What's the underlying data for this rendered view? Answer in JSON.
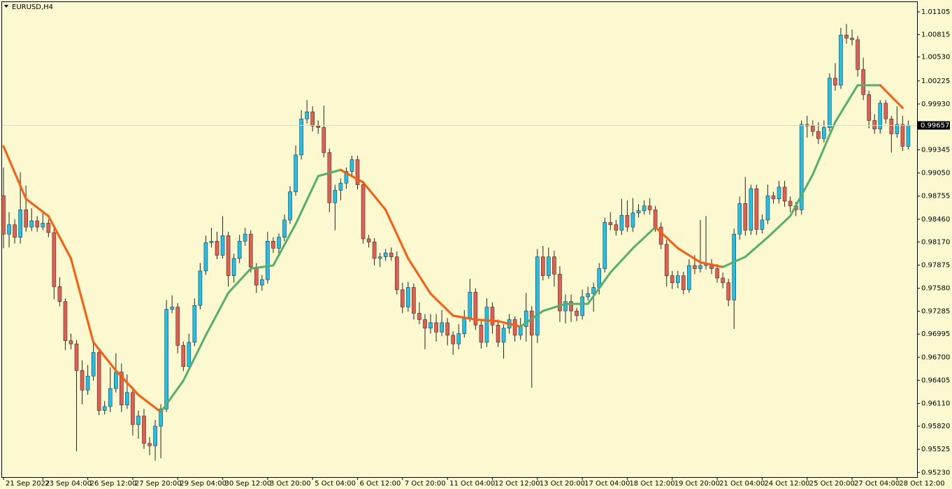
{
  "chart_data": {
    "type": "candlestick",
    "title": "EURUSD,H4",
    "up_color": "#19c3ef",
    "down_color": "#e65c4f",
    "categories": [
      "21 Sep 2022",
      null,
      null,
      null,
      null,
      null,
      null,
      "23 Sep 04:00",
      null,
      null,
      null,
      null,
      null,
      null,
      null,
      "26 Sep 12:00",
      null,
      null,
      null,
      null,
      null,
      null,
      null,
      "27 Sep 20:00",
      null,
      null,
      null,
      null,
      null,
      null,
      null,
      "29 Sep 04:00",
      null,
      null,
      null,
      null,
      null,
      null,
      null,
      "30 Sep 12:00",
      null,
      null,
      null,
      null,
      null,
      null,
      null,
      "3 Oct 20:00",
      null,
      null,
      null,
      null,
      null,
      null,
      null,
      "5 Oct 04:00",
      null,
      null,
      null,
      null,
      null,
      null,
      null,
      "6 Oct 12:00",
      null,
      null,
      null,
      null,
      null,
      null,
      null,
      "7 Oct 20:00",
      null,
      null,
      null,
      null,
      null,
      null,
      null,
      "11 Oct 04:00",
      null,
      null,
      null,
      null,
      null,
      null,
      null,
      "12 Oct 12:00",
      null,
      null,
      null,
      null,
      null,
      null,
      null,
      "13 Oct 20:00",
      null,
      null,
      null,
      null,
      null,
      null,
      null,
      "17 Oct 04:00",
      null,
      null,
      null,
      null,
      null,
      null,
      null,
      "18 Oct 12:00",
      null,
      null,
      null,
      null,
      null,
      null,
      null,
      "19 Oct 20:00",
      null,
      null,
      null,
      null,
      null,
      null,
      null,
      "21 Oct 04:00",
      null,
      null,
      null,
      null,
      null,
      null,
      null,
      "24 Oct 12:00",
      null,
      null,
      null,
      null,
      null,
      null,
      null,
      "25 Oct 20:00",
      null,
      null,
      null,
      null,
      null,
      null,
      null,
      "27 Oct 04:00",
      null,
      null,
      null,
      null,
      null,
      null,
      null,
      "28 Oct 12:00",
      null,
      null
    ],
    "open": [
      0.9876,
      0.9827,
      0.9839,
      0.9823,
      0.9858,
      0.9836,
      0.9844,
      0.9836,
      0.9841,
      0.9829,
      0.976,
      0.9741,
      0.9691,
      0.9687,
      0.9653,
      0.9628,
      0.9646,
      0.9676,
      0.9602,
      0.9607,
      0.963,
      0.9651,
      0.9609,
      0.9625,
      0.9584,
      0.9595,
      0.956,
      0.9557,
      0.9582,
      0.9604,
      0.9731,
      0.9734,
      0.9685,
      0.9658,
      0.9689,
      0.9736,
      0.978,
      0.9816,
      0.9818,
      0.98,
      0.9825,
      0.9774,
      0.9796,
      0.9818,
      0.9827,
      0.9785,
      0.9762,
      0.9769,
      0.9818,
      0.9809,
      0.9823,
      0.9845,
      0.9881,
      0.9928,
      0.9974,
      0.9983,
      0.9965,
      0.9963,
      0.9931,
      0.9867,
      0.9883,
      0.9892,
      0.9907,
      0.9922,
      0.989,
      0.9821,
      0.9817,
      0.9796,
      0.9798,
      0.9803,
      0.9798,
      0.9756,
      0.9734,
      0.9759,
      0.9726,
      0.9718,
      0.9707,
      0.9714,
      0.9702,
      0.9714,
      0.9698,
      0.9687,
      0.97,
      0.972,
      0.9753,
      0.9711,
      0.9689,
      0.9734,
      0.9711,
      0.9689,
      0.9707,
      0.9718,
      0.9698,
      0.9709,
      0.9729,
      0.9698,
      0.9798,
      0.9774,
      0.9798,
      0.9776,
      0.9729,
      0.9741,
      0.9729,
      0.9723,
      0.9747,
      0.9751,
      0.9759,
      0.9783,
      0.9842,
      0.9839,
      0.9832,
      0.9851,
      0.9836,
      0.9854,
      0.9857,
      0.9863,
      0.9858,
      0.9836,
      0.9814,
      0.9774,
      0.9765,
      0.9774,
      0.9756,
      0.9787,
      0.9783,
      0.9787,
      0.9789,
      0.9783,
      0.9771,
      0.9765,
      0.9743,
      0.9827,
      0.9866,
      0.9832,
      0.9885,
      0.9833,
      0.9845,
      0.9876,
      0.9872,
      0.9887,
      0.9869,
      0.9863,
      0.9858,
      0.9967,
      0.9965,
      0.9958,
      0.9949,
      0.9963,
      1.0026,
      1.0017,
      1.0081,
      1.0077,
      1.0075,
      1.0037,
      1.0005,
      0.9972,
      0.9961,
      0.9994,
      0.9974,
      0.9955,
      0.9967,
      0.9939
    ],
    "high": [
      0.9912,
      0.9855,
      0.9846,
      0.9906,
      0.9889,
      0.986,
      0.985,
      0.9857,
      0.9846,
      0.9834,
      0.9772,
      0.9745,
      0.97,
      0.9692,
      0.9666,
      0.966,
      0.969,
      0.9681,
      0.9614,
      0.9657,
      0.9675,
      0.9662,
      0.9648,
      0.9632,
      0.9602,
      0.9604,
      0.9568,
      0.959,
      0.961,
      0.9743,
      0.9749,
      0.9739,
      0.969,
      0.97,
      0.9745,
      0.979,
      0.9825,
      0.9835,
      0.983,
      0.985,
      0.983,
      0.9802,
      0.9826,
      0.9835,
      0.9832,
      0.979,
      0.9775,
      0.983,
      0.9823,
      0.9828,
      0.9852,
      0.9888,
      0.994,
      0.9985,
      0.9998,
      0.999,
      0.9972,
      0.9991,
      0.9936,
      0.989,
      0.9898,
      0.9912,
      0.9927,
      0.9927,
      0.9895,
      0.9826,
      0.9822,
      0.9803,
      0.9808,
      0.981,
      0.9805,
      0.9765,
      0.9766,
      0.9764,
      0.974,
      0.9725,
      0.9725,
      0.9725,
      0.973,
      0.972,
      0.9703,
      0.9712,
      0.973,
      0.977,
      0.9758,
      0.9716,
      0.9745,
      0.974,
      0.9718,
      0.9712,
      0.9725,
      0.9722,
      0.972,
      0.9752,
      0.9735,
      0.9808,
      0.9812,
      0.981,
      0.9806,
      0.9786,
      0.975,
      0.975,
      0.9733,
      0.9756,
      0.976,
      0.9765,
      0.979,
      0.9848,
      0.9855,
      0.9845,
      0.9872,
      0.987,
      0.9873,
      0.9865,
      0.987,
      0.9873,
      0.9863,
      0.9842,
      0.982,
      0.978,
      0.978,
      0.9779,
      0.9795,
      0.98,
      0.9845,
      0.985,
      0.9795,
      0.9789,
      0.9778,
      0.977,
      0.9834,
      0.9875,
      0.99,
      0.989,
      0.989,
      0.9852,
      0.989,
      0.9881,
      0.9895,
      0.9895,
      0.9875,
      0.9868,
      0.9972,
      0.9978,
      0.9972,
      0.997,
      0.9972,
      1.0032,
      1.0045,
      1.009,
      1.0095,
      1.0088,
      1.008,
      1.0052,
      1.001,
      0.998,
      0.9998,
      0.9998,
      0.9978,
      0.999,
      0.9978,
      0.9972
    ],
    "low": [
      0.9809,
      0.981,
      0.9815,
      0.9815,
      0.983,
      0.9831,
      0.983,
      0.9832,
      0.9823,
      0.9744,
      0.9735,
      0.9679,
      0.968,
      0.955,
      0.961,
      0.9622,
      0.964,
      0.9596,
      0.9597,
      0.96,
      0.9625,
      0.96,
      0.9604,
      0.957,
      0.9566,
      0.9553,
      0.9545,
      0.9538,
      0.9541,
      0.96,
      0.9726,
      0.9675,
      0.9652,
      0.9652,
      0.9684,
      0.9731,
      0.9775,
      0.981,
      0.9795,
      0.9796,
      0.976,
      0.9765,
      0.979,
      0.9812,
      0.9778,
      0.9752,
      0.9755,
      0.9764,
      0.9803,
      0.98,
      0.9818,
      0.984,
      0.9876,
      0.9922,
      0.9968,
      0.9958,
      0.9955,
      0.9925,
      0.9855,
      0.9832,
      0.987,
      0.9885,
      0.99,
      0.9884,
      0.9815,
      0.981,
      0.9787,
      0.9785,
      0.9793,
      0.9793,
      0.975,
      0.9726,
      0.9728,
      0.9718,
      0.9712,
      0.968,
      0.97,
      0.969,
      0.9697,
      0.9685,
      0.9673,
      0.968,
      0.9695,
      0.9715,
      0.9705,
      0.9681,
      0.9683,
      0.97,
      0.9683,
      0.9668,
      0.97,
      0.969,
      0.9692,
      0.969,
      0.9631,
      0.9688,
      0.9768,
      0.977,
      0.976,
      0.9715,
      0.9713,
      0.9715,
      0.9716,
      0.9718,
      0.9742,
      0.9728,
      0.975,
      0.9778,
      0.9832,
      0.9825,
      0.9826,
      0.983,
      0.983,
      0.9848,
      0.9852,
      0.9852,
      0.983,
      0.9808,
      0.976,
      0.9757,
      0.9758,
      0.975,
      0.9752,
      0.9776,
      0.9778,
      0.9782,
      0.9776,
      0.9765,
      0.9758,
      0.9735,
      0.9706,
      0.982,
      0.9825,
      0.9826,
      0.9826,
      0.9828,
      0.984,
      0.9866,
      0.9866,
      0.9862,
      0.9855,
      0.985,
      0.9852,
      0.995,
      0.9952,
      0.9942,
      0.9944,
      0.9958,
      1.001,
      1.0012,
      1.007,
      1.0068,
      1.0028,
      0.9998,
      0.9962,
      0.9955,
      0.9955,
      0.9968,
      0.9931,
      0.995,
      0.9933,
      0.9935
    ],
    "close": [
      0.9827,
      0.9839,
      0.9823,
      0.9858,
      0.9836,
      0.9844,
      0.9836,
      0.9841,
      0.9829,
      0.976,
      0.9741,
      0.9691,
      0.9687,
      0.9653,
      0.9628,
      0.9646,
      0.9676,
      0.9602,
      0.9607,
      0.963,
      0.9651,
      0.9609,
      0.9625,
      0.9584,
      0.9595,
      0.956,
      0.9557,
      0.9582,
      0.9604,
      0.9731,
      0.9734,
      0.9685,
      0.9658,
      0.9689,
      0.9736,
      0.978,
      0.9816,
      0.9818,
      0.98,
      0.9825,
      0.9774,
      0.9796,
      0.9818,
      0.9827,
      0.9785,
      0.9762,
      0.9769,
      0.9818,
      0.9809,
      0.9823,
      0.9845,
      0.9881,
      0.9928,
      0.9974,
      0.9983,
      0.9965,
      0.9963,
      0.9931,
      0.9867,
      0.9883,
      0.9892,
      0.9907,
      0.9922,
      0.989,
      0.9821,
      0.9817,
      0.9796,
      0.9798,
      0.9803,
      0.9798,
      0.9756,
      0.9734,
      0.9759,
      0.9726,
      0.9718,
      0.9707,
      0.9714,
      0.9702,
      0.9714,
      0.9698,
      0.9687,
      0.97,
      0.972,
      0.9753,
      0.9711,
      0.9689,
      0.9734,
      0.9711,
      0.9689,
      0.9707,
      0.9718,
      0.9698,
      0.9709,
      0.9729,
      0.9698,
      0.9798,
      0.9774,
      0.9798,
      0.9776,
      0.9729,
      0.9741,
      0.9729,
      0.9723,
      0.9747,
      0.9751,
      0.9759,
      0.9783,
      0.9842,
      0.9839,
      0.9832,
      0.9851,
      0.9836,
      0.9854,
      0.9857,
      0.9863,
      0.9858,
      0.9836,
      0.9814,
      0.9774,
      0.9765,
      0.9774,
      0.9756,
      0.9787,
      0.9783,
      0.9787,
      0.9789,
      0.9783,
      0.9771,
      0.9765,
      0.9743,
      0.9827,
      0.9866,
      0.9832,
      0.9885,
      0.9833,
      0.9845,
      0.9876,
      0.9872,
      0.9887,
      0.9869,
      0.9863,
      0.9858,
      0.9967,
      0.9965,
      0.9958,
      0.9949,
      0.9963,
      1.0026,
      1.0017,
      1.0081,
      1.0077,
      1.0075,
      1.0037,
      1.0005,
      0.9972,
      0.9961,
      0.9994,
      0.9974,
      0.9955,
      0.9967,
      0.9939,
      0.9966
    ],
    "ma": {
      "up_color": "#52b06c",
      "down_color": "#ff5a0a",
      "x": [
        0,
        4,
        8,
        12,
        16,
        20,
        24,
        28,
        32,
        36,
        40,
        44,
        48,
        52,
        56,
        60,
        64,
        68,
        72,
        76,
        80,
        84,
        88,
        92,
        96,
        100,
        104,
        108,
        112,
        116,
        120,
        124,
        128,
        132,
        136,
        140,
        144,
        148,
        152,
        156,
        160
      ],
      "values": [
        0.9939,
        0.9872,
        0.985,
        0.9796,
        0.9689,
        0.9653,
        0.9622,
        0.96,
        0.964,
        0.9698,
        0.9752,
        0.9783,
        0.9787,
        0.984,
        0.9901,
        0.9909,
        0.9893,
        0.9858,
        0.9796,
        0.9751,
        0.9723,
        0.9718,
        0.9716,
        0.9709,
        0.9729,
        0.9738,
        0.9738,
        0.9778,
        0.9809,
        0.9836,
        0.9809,
        0.9791,
        0.9785,
        0.9798,
        0.9823,
        0.985,
        0.9903,
        0.997,
        1.0017,
        1.0017,
        0.9988
      ]
    },
    "last_price": 0.99657,
    "ylim": [
      0.9517,
      1.0123
    ],
    "yticks": [
      1.01105,
      1.00815,
      {
        "value": 1.0053,
        "label": "1.00530"
      },
      1.00225,
      {
        "value": 0.9993,
        "label": "0.99930"
      },
      0.99345,
      {
        "value": 0.9905,
        "label": "0.99050"
      },
      0.98755,
      {
        "value": 0.9846,
        "label": "0.98460"
      },
      {
        "value": 0.9817,
        "label": "0.98170"
      },
      0.97875,
      {
        "value": 0.9758,
        "label": "0.97580"
      },
      0.97285,
      0.96995,
      {
        "value": 0.967,
        "label": "0.96700"
      },
      0.96405,
      {
        "value": 0.9611,
        "label": "0.96110"
      },
      {
        "value": 0.9582,
        "label": "0.95820"
      },
      0.95525,
      {
        "value": 0.9523,
        "label": "0.95230"
      }
    ]
  }
}
